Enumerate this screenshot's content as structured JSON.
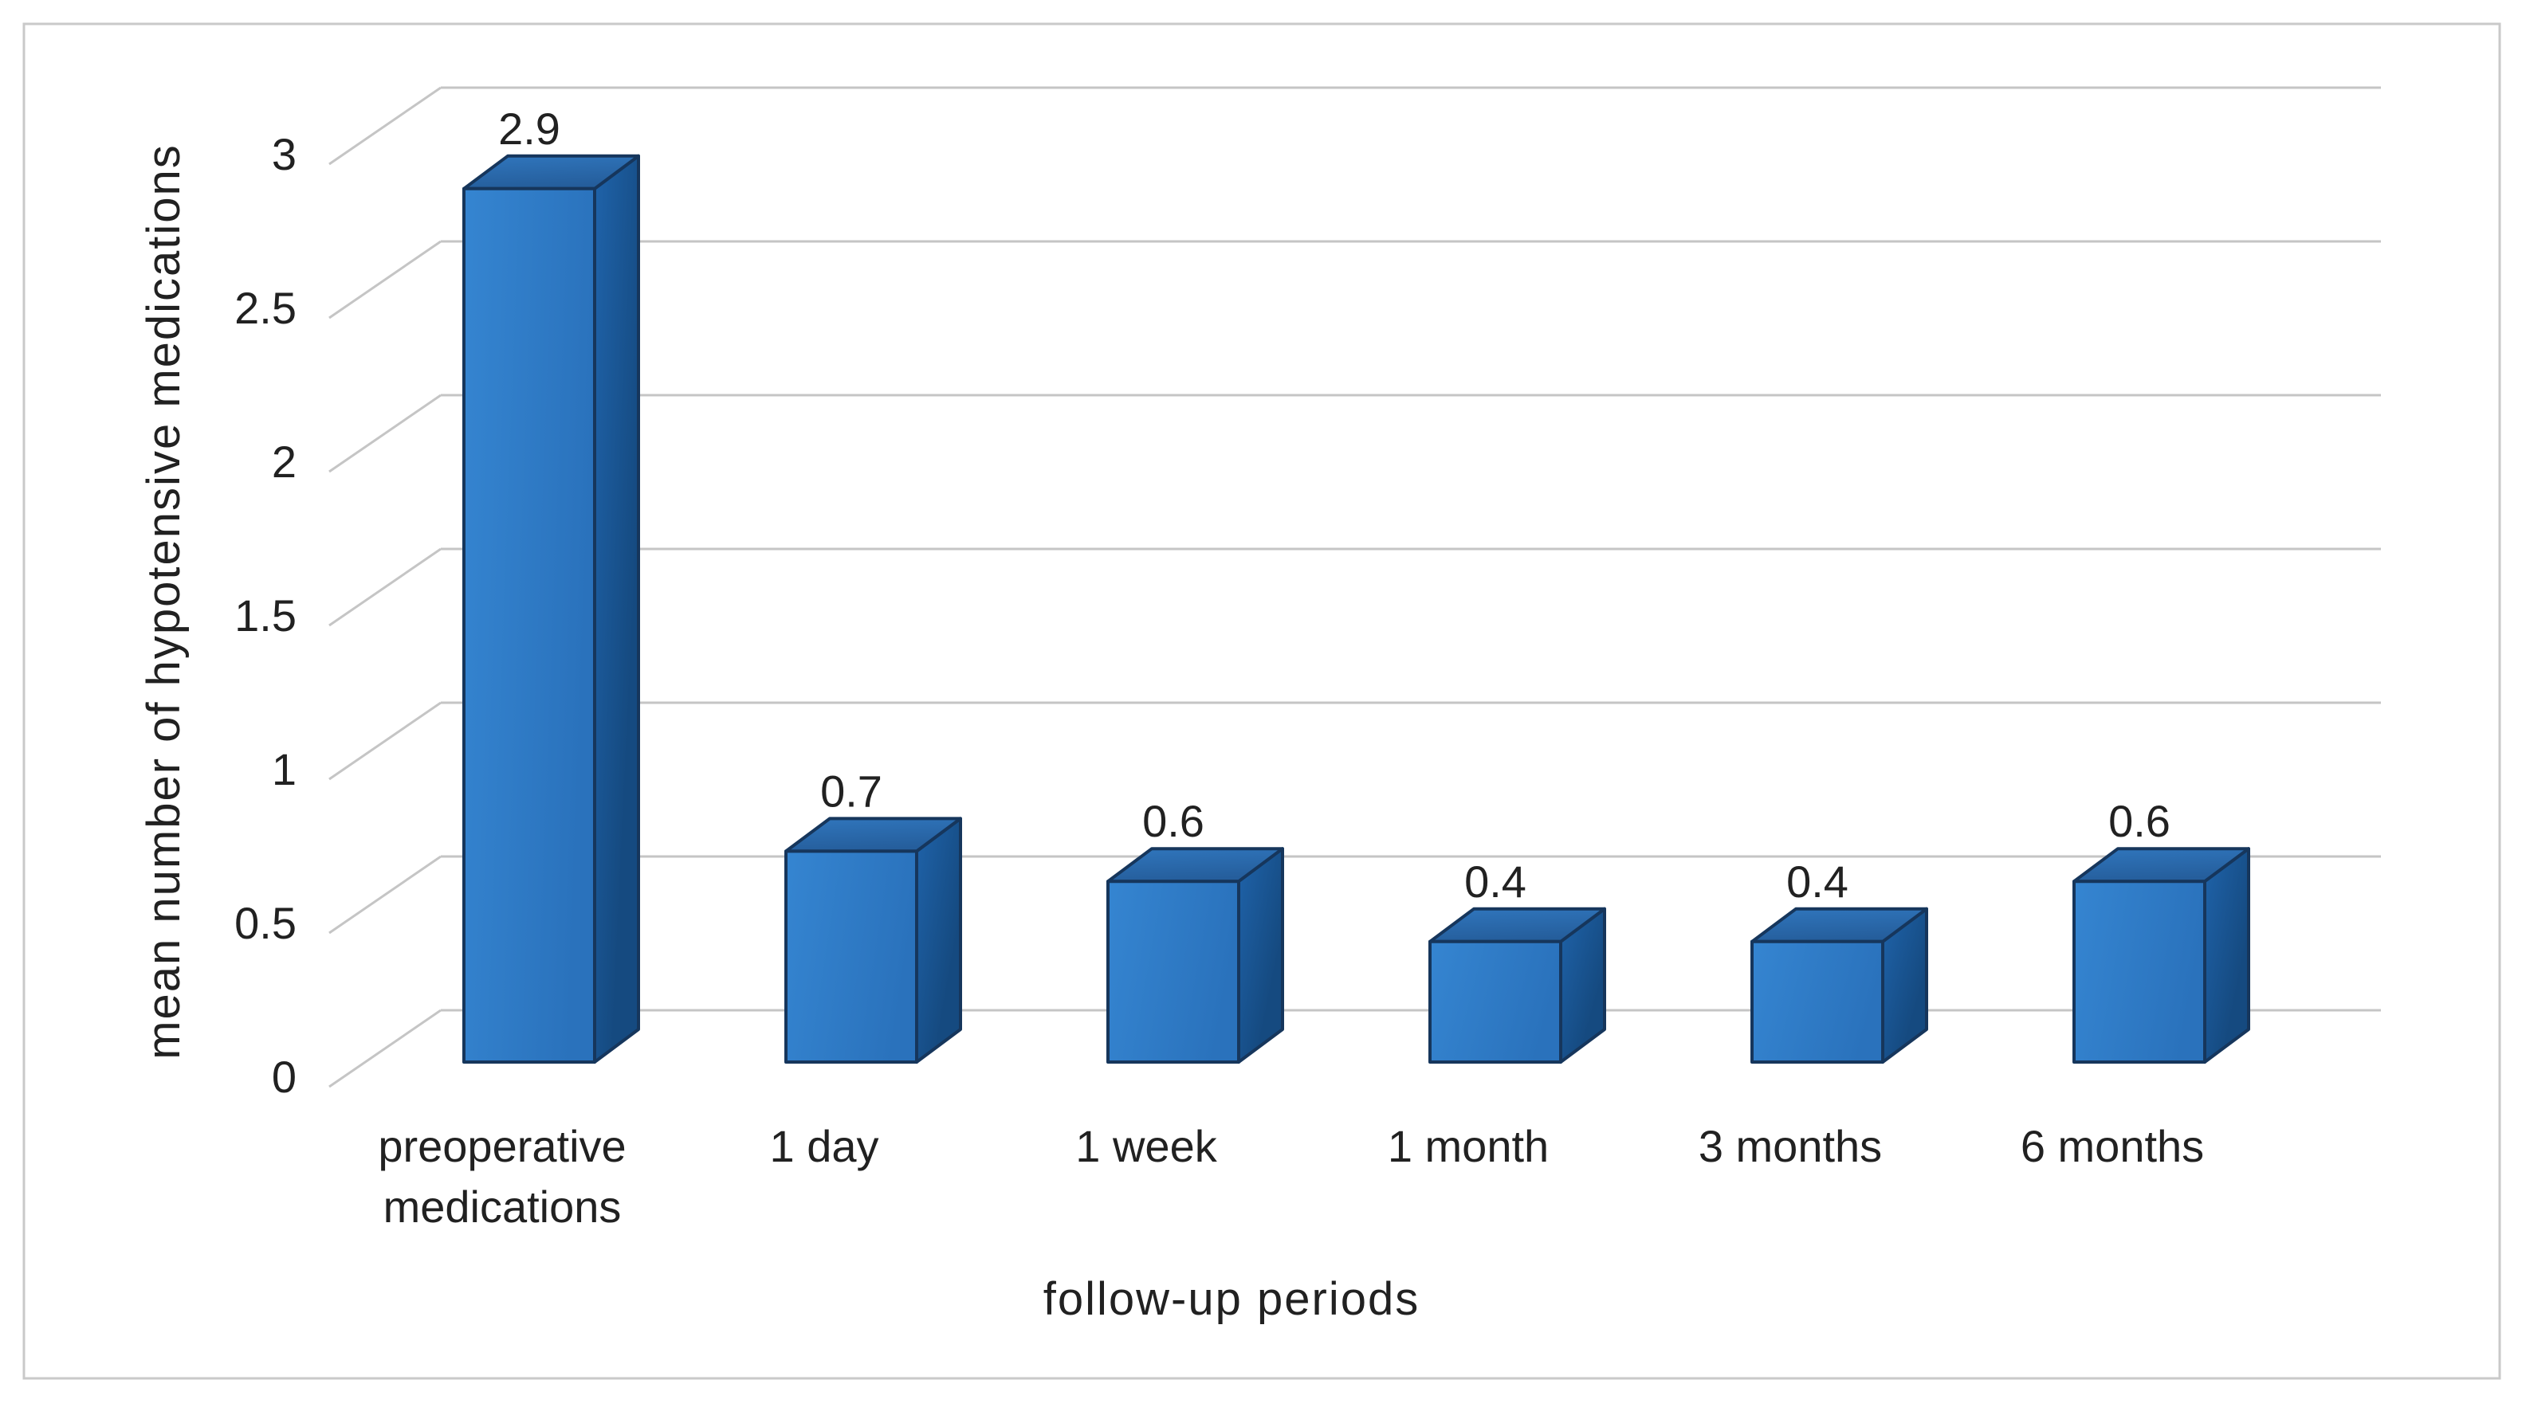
{
  "figure": {
    "background": "#ffffff",
    "frame_color": "#c9c9c9"
  },
  "chart_data": {
    "type": "bar",
    "style": "3d-column",
    "title": "",
    "xlabel": "follow-up periods",
    "ylabel": "mean number of hypotensive medications",
    "categories": [
      "preoperative medications",
      "1 day",
      "1 week",
      "1 month",
      "3 months",
      "6 months"
    ],
    "values": [
      2.9,
      0.7,
      0.6,
      0.4,
      0.4,
      0.6
    ],
    "data_labels": [
      "2.9",
      "0.7",
      "0.6",
      "0.4",
      "0.4",
      "0.6"
    ],
    "yticks": [
      0,
      0.5,
      1,
      1.5,
      2,
      2.5,
      3
    ],
    "ytick_labels": [
      "0",
      "0.5",
      "1",
      "1.5",
      "2",
      "2.5",
      "3"
    ],
    "ylim": [
      0,
      3
    ],
    "grid": true,
    "legend_position": "none",
    "colors": {
      "text": "#212121",
      "gridline": "#c5c5c5",
      "frame": "#c9c9c9",
      "background": "#ffffff",
      "bar_front_light": "#3585d1",
      "bar_front_dark": "#2a72bc",
      "bar_side_light": "#1f63aa",
      "bar_side_dark": "#154a80",
      "bar_top_light": "#3076bd",
      "bar_top_dark": "#255e9c",
      "bar_outline": "#16365c"
    }
  }
}
